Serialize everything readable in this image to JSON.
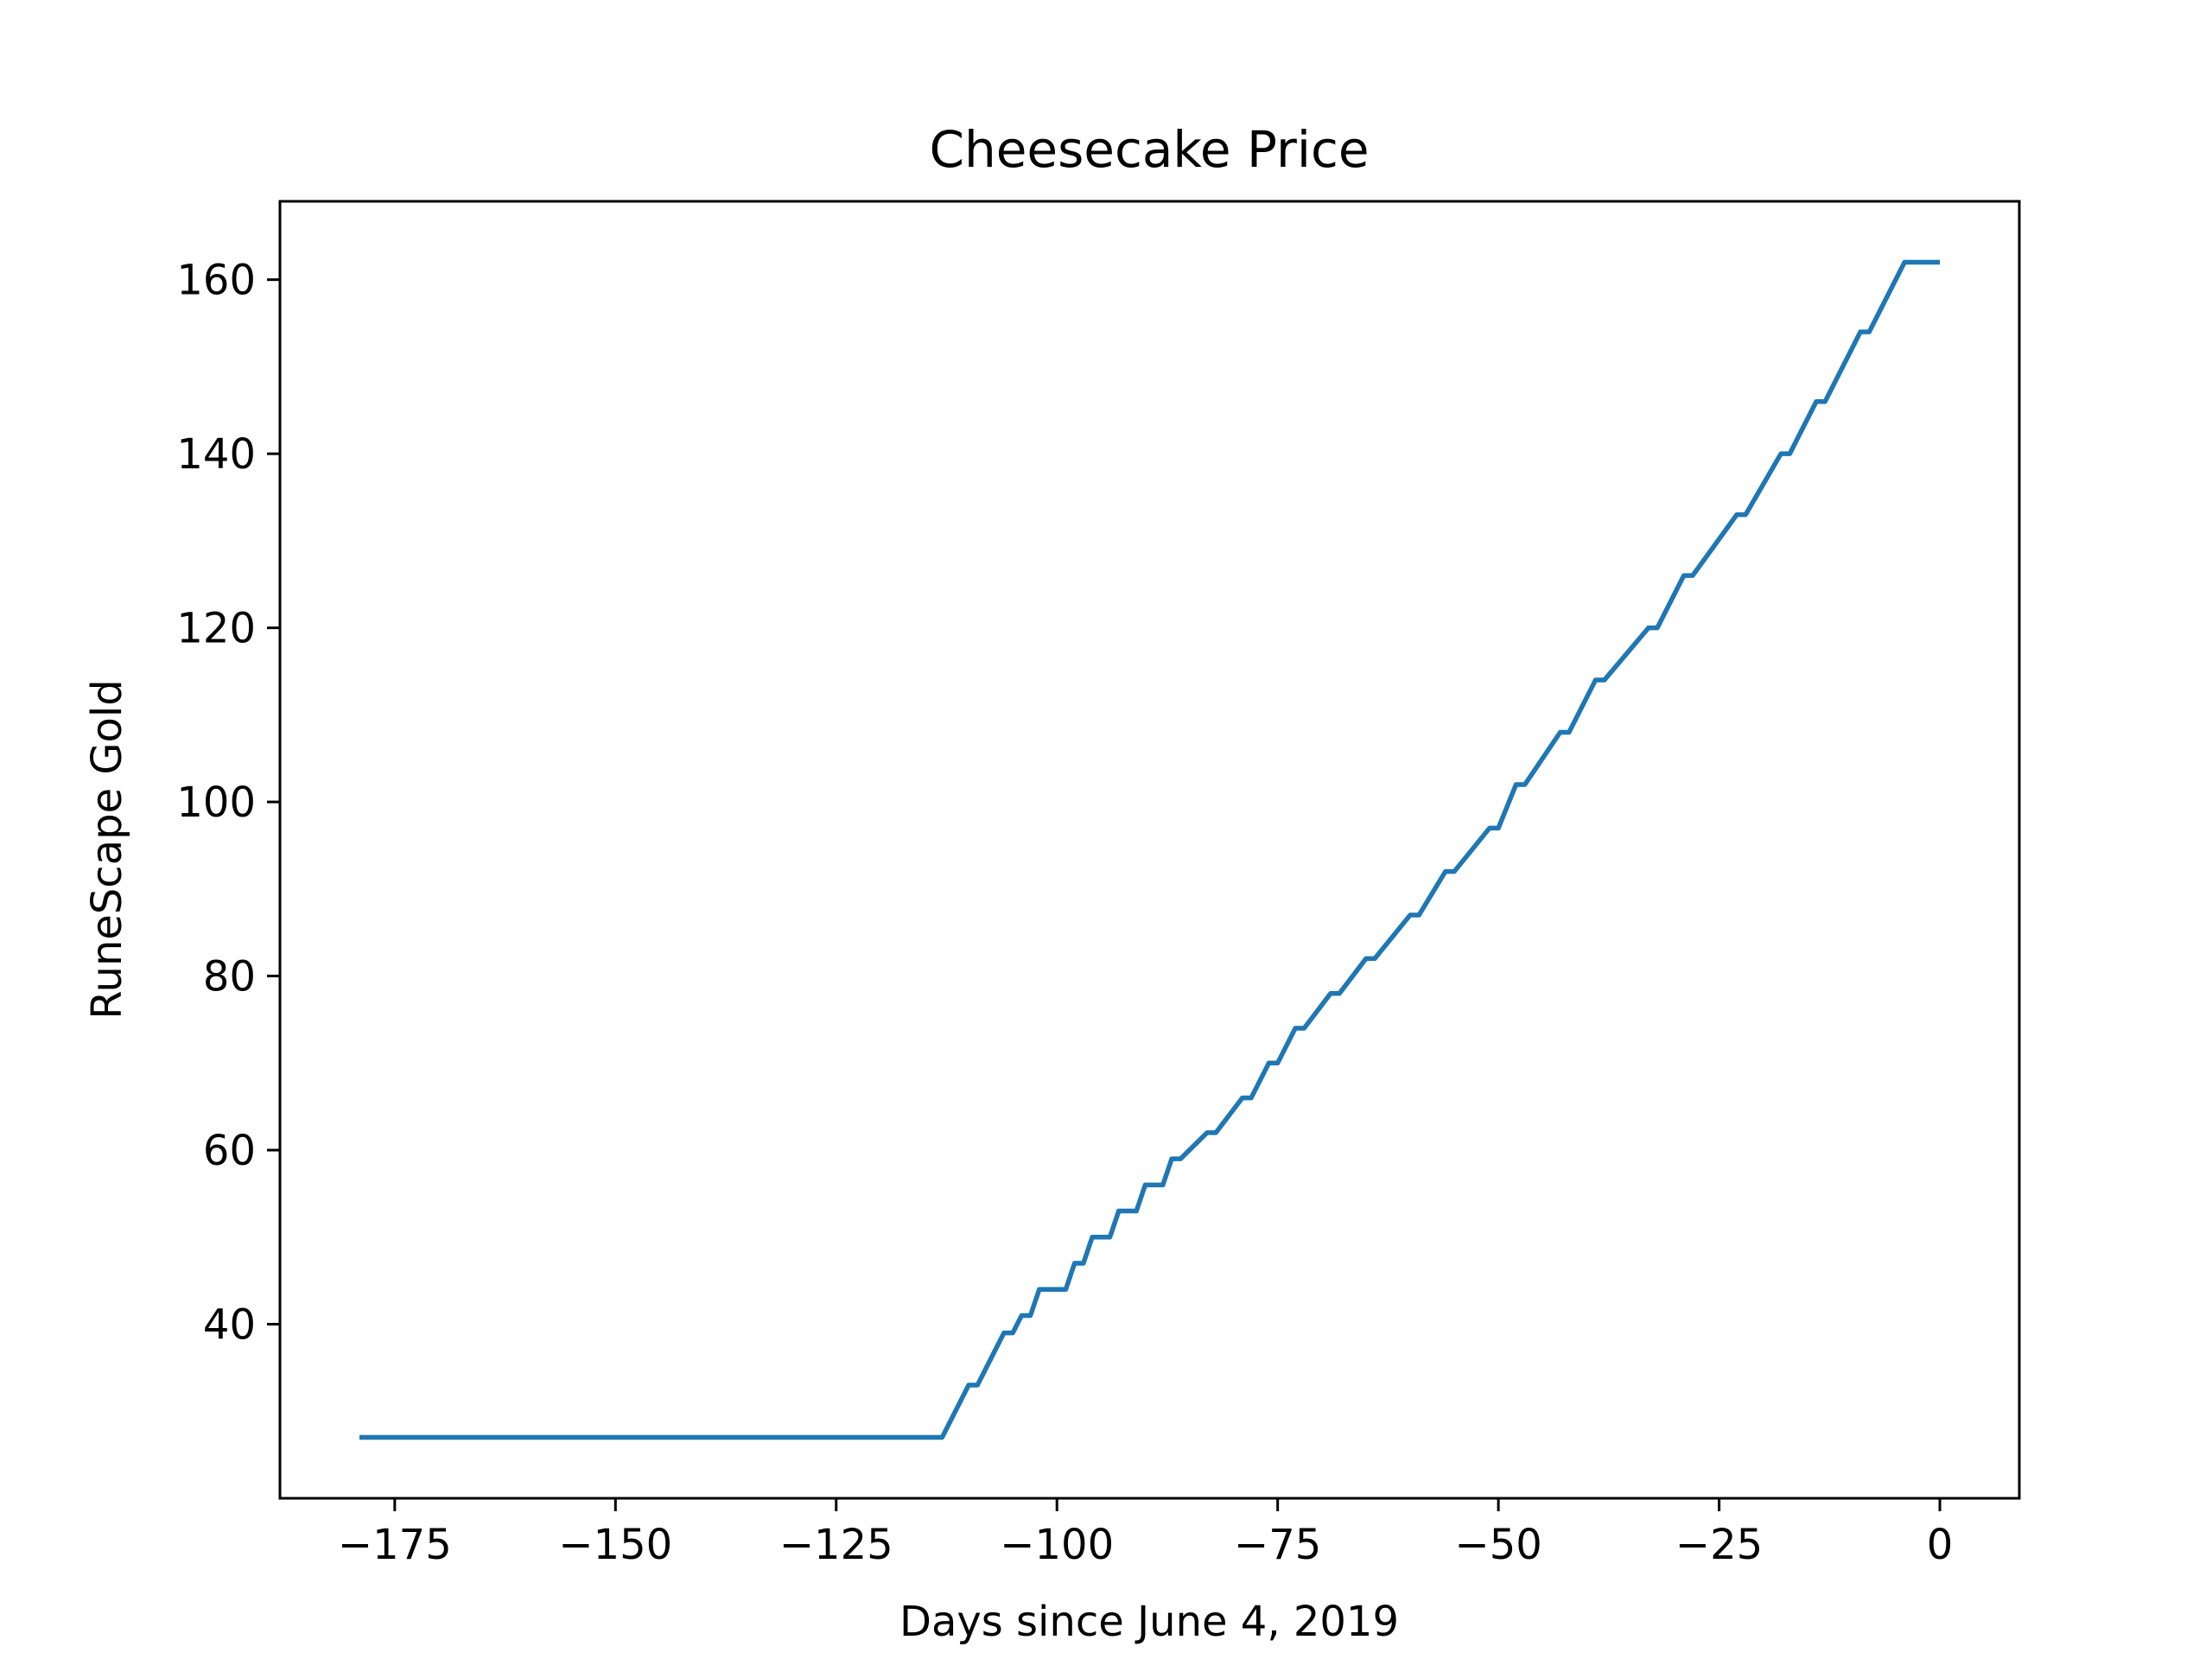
{
  "chart_data": {
    "type": "line",
    "title": "Cheesecake Price",
    "xlabel": "Days since June 4, 2019",
    "ylabel": "RuneScape Gold",
    "xlim": [
      -188,
      9
    ],
    "ylim": [
      20,
      169
    ],
    "xticks": [
      -175,
      -150,
      -125,
      -100,
      -75,
      -50,
      -25,
      0
    ],
    "xtick_labels": [
      "−175",
      "−150",
      "−125",
      "−100",
      "−75",
      "−50",
      "−25",
      "0"
    ],
    "yticks": [
      40,
      60,
      80,
      100,
      120,
      140,
      160
    ],
    "ytick_labels": [
      "40",
      "60",
      "80",
      "100",
      "120",
      "140",
      "160"
    ],
    "grid": false,
    "line_color": "#1f77b4",
    "series": [
      {
        "x": [
          -179,
          -113,
          -110,
          -109,
          -106,
          -105,
          -104,
          -103,
          -102,
          -99,
          -98,
          -97,
          -96,
          -94,
          -93,
          -91,
          -90,
          -88,
          -87,
          -86,
          -83,
          -82,
          -79,
          -78,
          -76,
          -75,
          -73,
          -72,
          -69,
          -68,
          -65,
          -64,
          -60,
          -59,
          -56,
          -55,
          -51,
          -50,
          -48,
          -47,
          -43,
          -42,
          -39,
          -38,
          -33,
          -32,
          -29,
          -28,
          -23,
          -22,
          -18,
          -17,
          -14,
          -13,
          -9,
          -8,
          -4,
          -3,
          0
        ],
        "y": [
          27,
          27,
          33,
          33,
          39,
          39,
          41,
          41,
          44,
          44,
          47,
          47,
          50,
          50,
          53,
          53,
          56,
          56,
          59,
          59,
          62,
          62,
          66,
          66,
          70,
          70,
          74,
          74,
          78,
          78,
          82,
          82,
          87,
          87,
          92,
          92,
          97,
          97,
          102,
          102,
          108,
          108,
          114,
          114,
          120,
          120,
          126,
          126,
          133,
          133,
          140,
          140,
          146,
          146,
          154,
          154,
          162,
          162,
          162
        ]
      }
    ]
  }
}
